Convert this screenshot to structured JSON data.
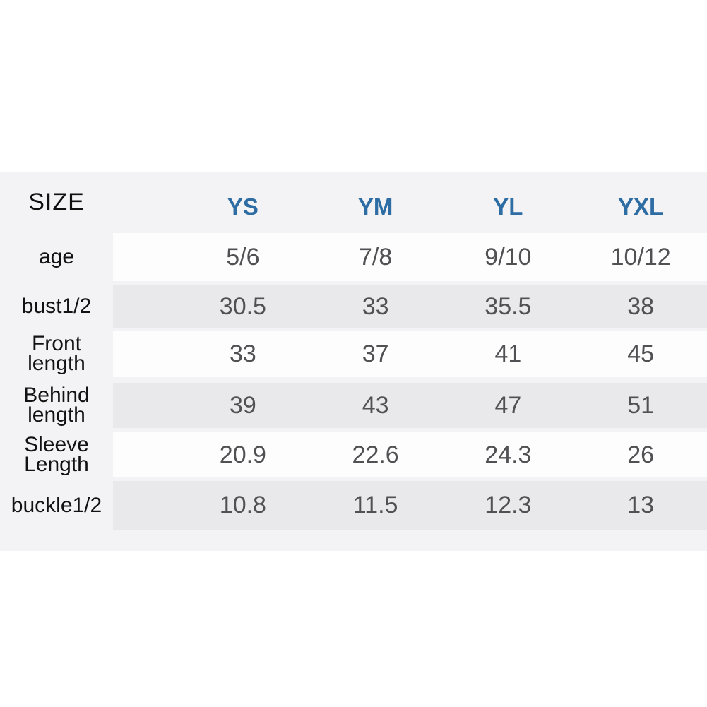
{
  "table": {
    "header": {
      "label": "SIZE",
      "columns": [
        "YS",
        "YM",
        "YL",
        "YXL"
      ]
    },
    "rows": [
      {
        "label": "age",
        "values": [
          "5/6",
          "7/8",
          "9/10",
          "10/12"
        ]
      },
      {
        "label": "bust1/2",
        "values": [
          "30.5",
          "33",
          "35.5",
          "38"
        ]
      },
      {
        "label": "Front\nlength",
        "values": [
          "33",
          "37",
          "41",
          "45"
        ]
      },
      {
        "label": "Behind\nlength",
        "values": [
          "39",
          "43",
          "47",
          "51"
        ]
      },
      {
        "label": "Sleeve\nLength",
        "values": [
          "20.9",
          "22.6",
          "24.3",
          "26"
        ]
      },
      {
        "label": "buckle1/2",
        "values": [
          "10.8",
          "11.5",
          "12.3",
          "13"
        ]
      }
    ],
    "colors": {
      "container_bg": "#f3f3f5",
      "row_white": "#fdfdfe",
      "row_gray": "#e9e9eb",
      "header_blue": "#2e6da4",
      "label_text": "#121212",
      "value_text": "#515154"
    }
  },
  "chart_data": {
    "type": "table",
    "columns": [
      "SIZE",
      "YS",
      "YM",
      "YL",
      "YXL"
    ],
    "rows": [
      [
        "age",
        "5/6",
        "7/8",
        "9/10",
        "10/12"
      ],
      [
        "bust1/2",
        "30.5",
        "33",
        "35.5",
        "38"
      ],
      [
        "Front length",
        "33",
        "37",
        "41",
        "45"
      ],
      [
        "Behind length",
        "39",
        "43",
        "47",
        "51"
      ],
      [
        "Sleeve Length",
        "20.9",
        "22.6",
        "24.3",
        "26"
      ],
      [
        "buckle1/2",
        "10.8",
        "11.5",
        "12.3",
        "13"
      ]
    ],
    "layout": {
      "label_column_bg": "light-gray",
      "alternating_rows": true
    }
  }
}
